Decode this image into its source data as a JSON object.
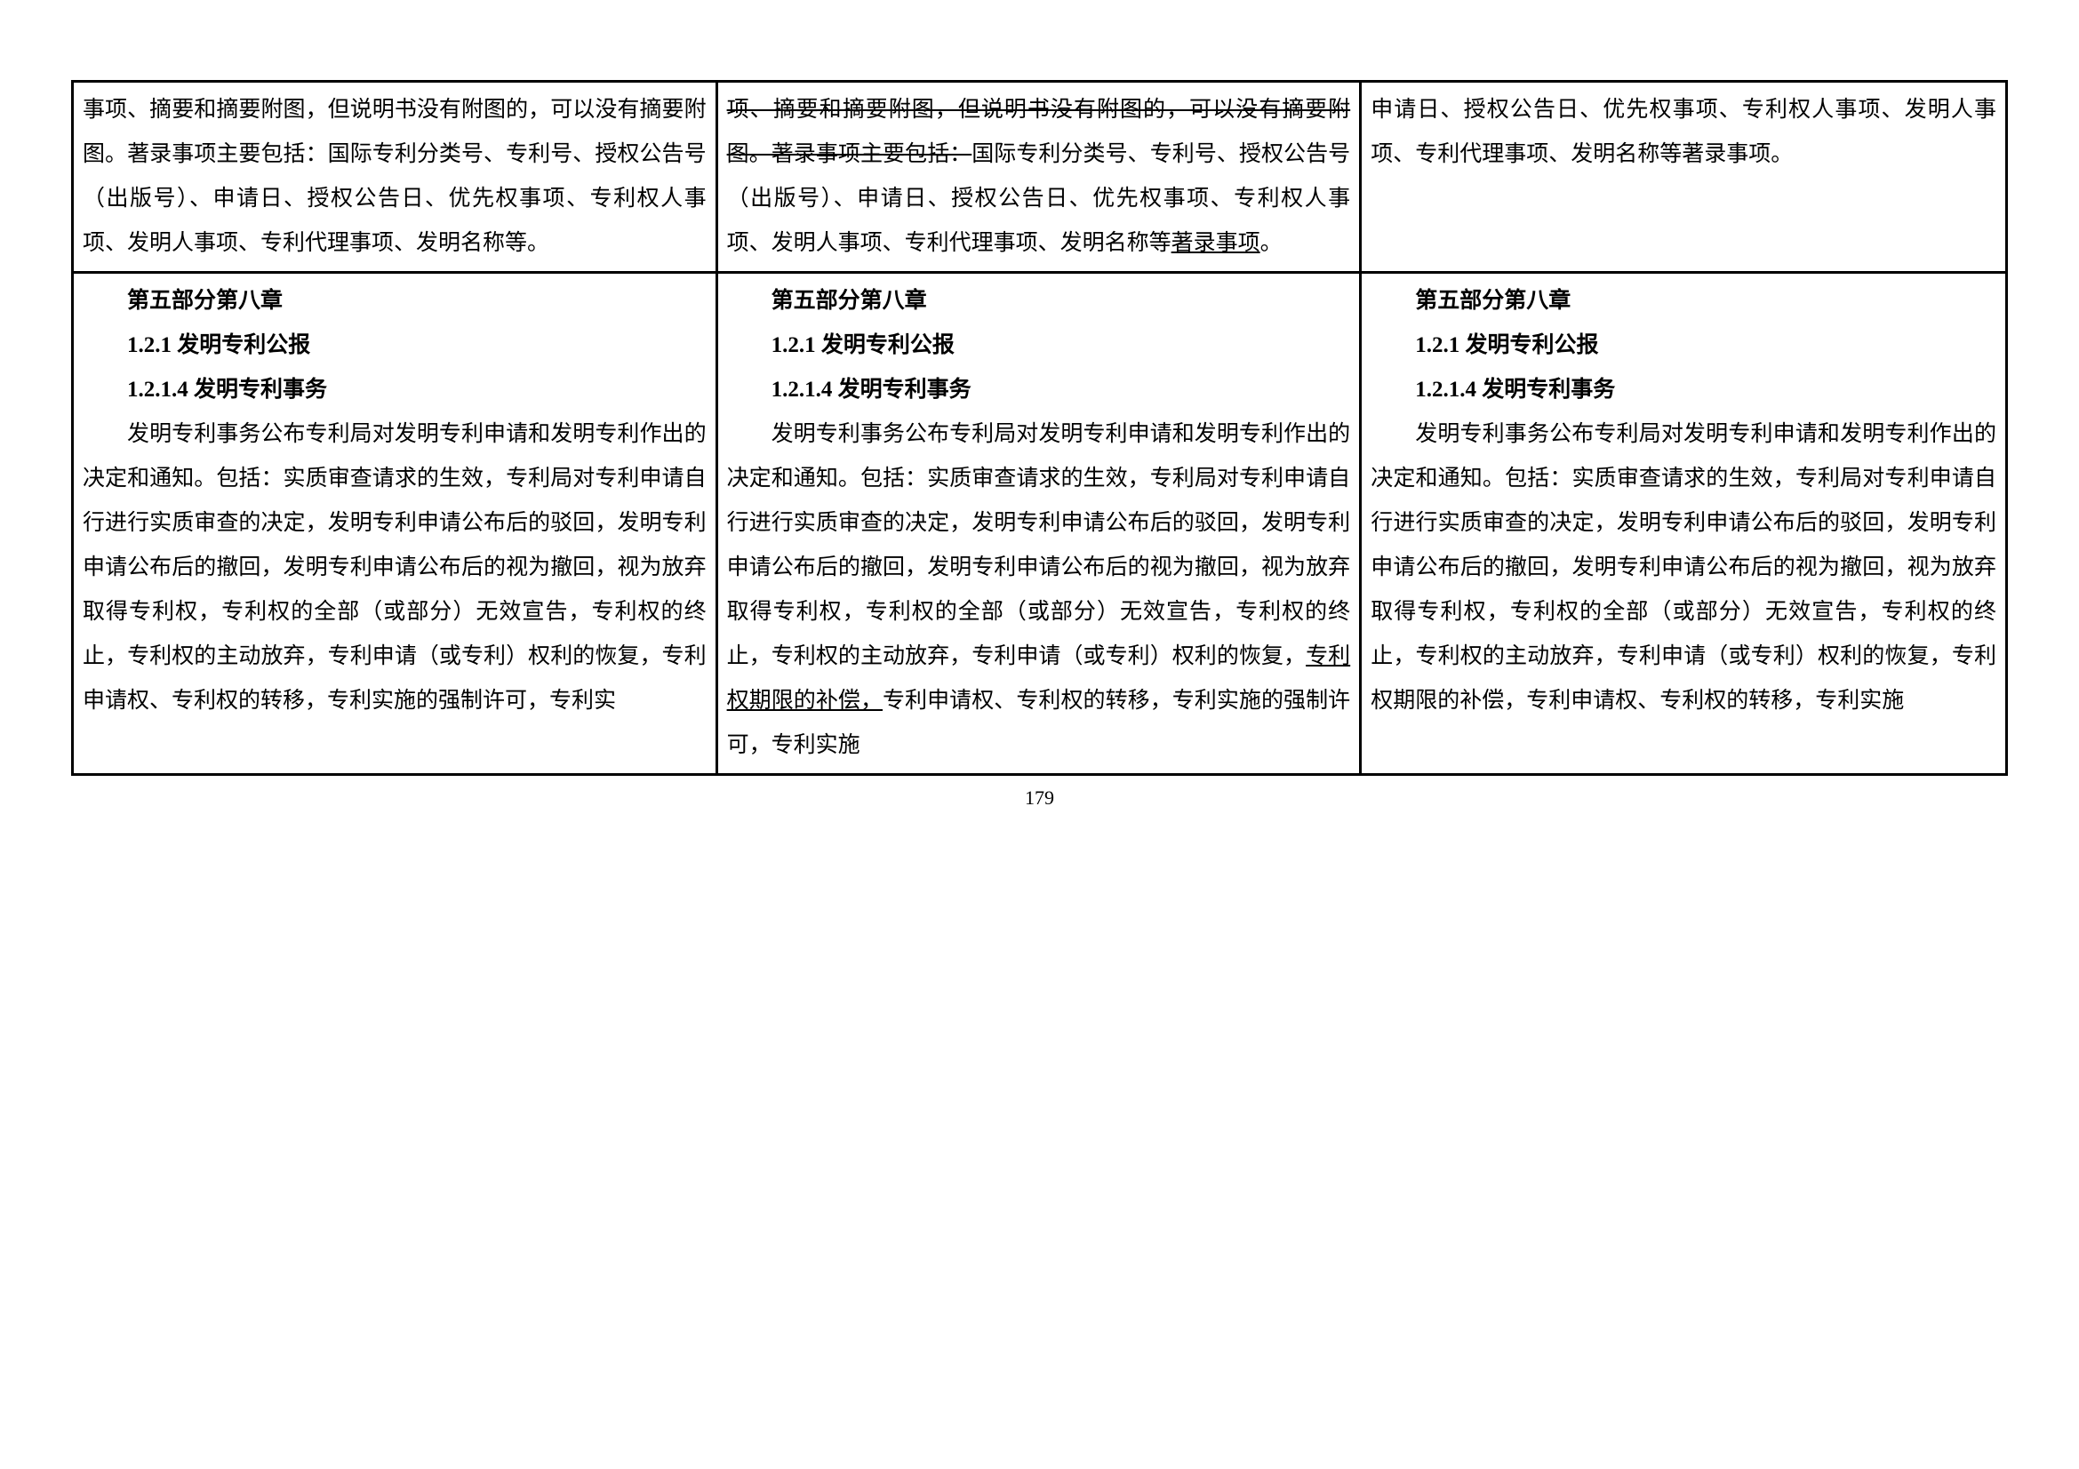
{
  "pageNumber": "179",
  "row1": {
    "col1": "事项、摘要和摘要附图，但说明书没有附图的，可以没有摘要附图。著录事项主要包括：国际专利分类号、专利号、授权公告号（出版号）、申请日、授权公告日、优先权事项、专利权人事项、发明人事项、专利代理事项、发明名称等。",
    "col2": {
      "strike1": "项、摘要和摘要附图，但说明书没有附图的，可以没有摘要附图。著录事项主要包括：",
      "plain1": "国际专利分类号、专利号、授权公告号（出版号）、申请日、授权公告日、优先权事项、专利权人事项、发明人事项、专利代理事项、发明名称等",
      "underline1": "著录事项",
      "plain2": "。"
    },
    "col3": "申请日、授权公告日、优先权事项、专利权人事项、发明人事项、专利代理事项、发明名称等著录事项。"
  },
  "row2": {
    "h1": "第五部分第八章",
    "h2": "1.2.1 发明专利公报",
    "h3": "1.2.1.4 发明专利事务",
    "col1_body": "发明专利事务公布专利局对发明专利申请和发明专利作出的决定和通知。包括：实质审查请求的生效，专利局对专利申请自行进行实质审查的决定，发明专利申请公布后的驳回，发明专利申请公布后的撤回，发明专利申请公布后的视为撤回，视为放弃取得专利权，专利权的全部（或部分）无效宣告，专利权的终止，专利权的主动放弃，专利申请（或专利）权利的恢复，专利申请权、专利权的转移，专利实施的强制许可，专利实",
    "col2_body_a": "发明专利事务公布专利局对发明专利申请和发明专利作出的决定和通知。包括：实质审查请求的生效，专利局对专利申请自行进行实质审查的决定，发明专利申请公布后的驳回，发明专利申请公布后的撤回，发明专利申请公布后的视为撤回，视为放弃取得专利权，专利权的全部（或部分）无效宣告，专利权的终止，专利权的主动放弃，专利申请（或专利）权利的恢复，",
    "col2_underline": "专利权期限的补偿，",
    "col2_body_b": "专利申请权、专利权的转移，专利实施的强制许可，专利实施",
    "col3_body": "发明专利事务公布专利局对发明专利申请和发明专利作出的决定和通知。包括：实质审查请求的生效，专利局对专利申请自行进行实质审查的决定，发明专利申请公布后的驳回，发明专利申请公布后的撤回，发明专利申请公布后的视为撤回，视为放弃取得专利权，专利权的全部（或部分）无效宣告，专利权的终止，专利权的主动放弃，专利申请（或专利）权利的恢复，专利权期限的补偿，专利申请权、专利权的转移，专利实施"
  },
  "style": {
    "font_size_body": 25,
    "font_size_page_num": 22,
    "line_height": 2.0,
    "border_color": "#000000",
    "border_width": 3,
    "background_color": "#ffffff",
    "text_color": "#000000"
  }
}
